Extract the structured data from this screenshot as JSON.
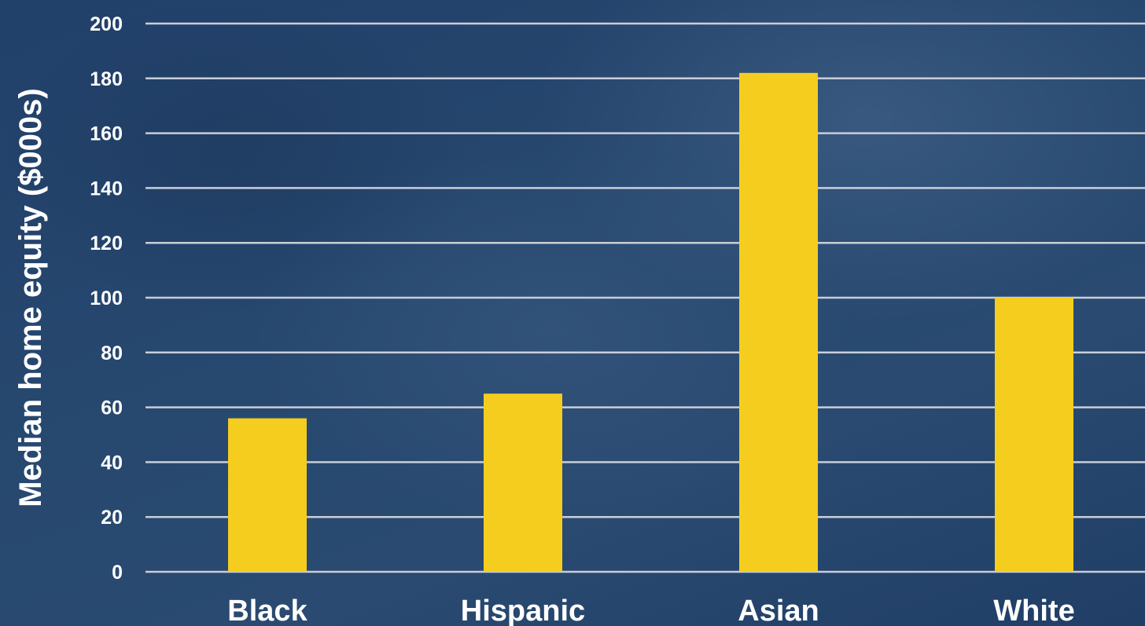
{
  "colors": {
    "background": "#23426a",
    "bar": "#f4cd1f",
    "gridline": "#c9ced6",
    "text": "#ffffff"
  },
  "chart_data": {
    "type": "bar",
    "title": "",
    "xlabel": "",
    "ylabel": "Median home equity ($000s)",
    "categories": [
      "Black",
      "Hispanic",
      "Asian",
      "White"
    ],
    "values": [
      56,
      65,
      182,
      100
    ],
    "ylim": [
      0,
      200
    ],
    "yticks": [
      0,
      20,
      40,
      60,
      80,
      100,
      120,
      140,
      160,
      180,
      200
    ],
    "grid": true,
    "legend": "none"
  }
}
